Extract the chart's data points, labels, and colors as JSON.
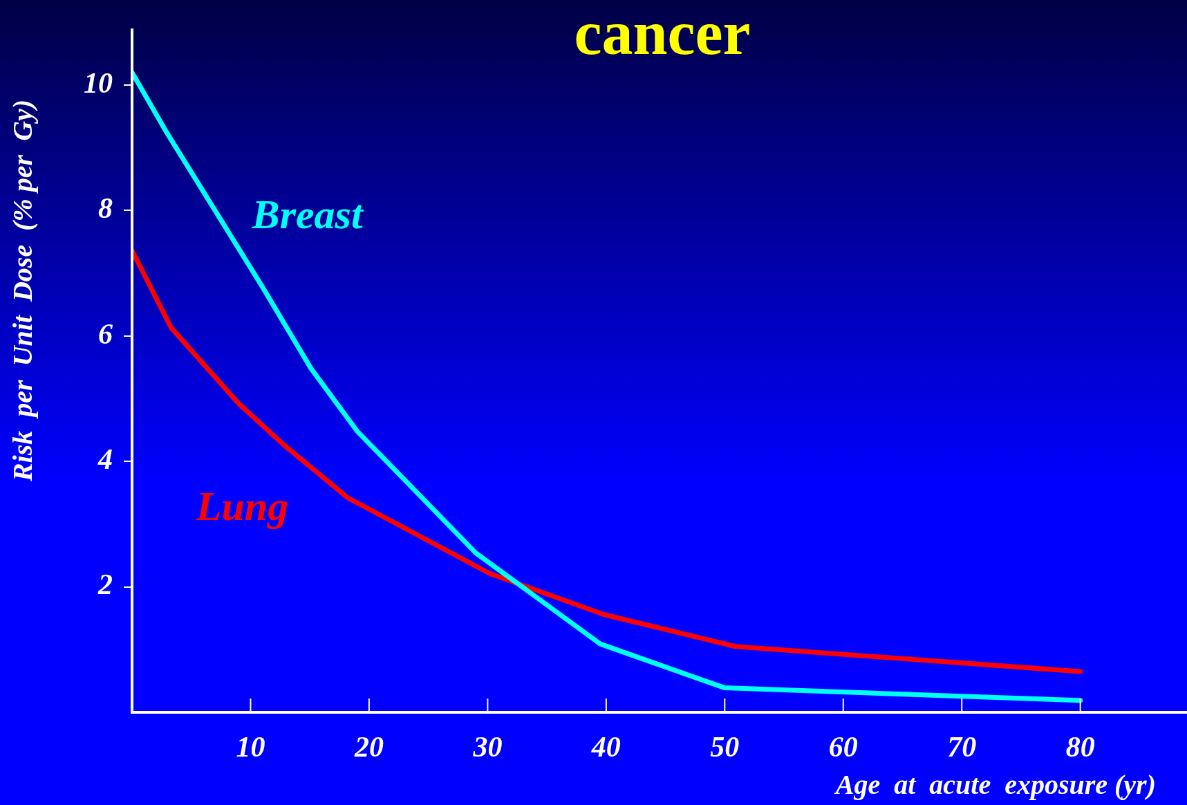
{
  "chart_data": {
    "type": "line",
    "title": "cancer",
    "xlabel": "Age  at  acute  exposure (yr)",
    "ylabel": "Risk  per  Unit  Dose  (% per  Gy)",
    "xlim": [
      0,
      89
    ],
    "ylim": [
      0,
      10.9
    ],
    "xticks": [
      10,
      20,
      30,
      40,
      50,
      60,
      70,
      80
    ],
    "yticks": [
      2,
      4,
      6,
      8,
      10
    ],
    "grid": false,
    "legend": false,
    "marker": "none",
    "line_style": "solid",
    "series": [
      {
        "name": "Breast",
        "color": "#00ffff",
        "x": [
          0,
          2.9,
          11,
          15.1,
          19,
          29,
          39.5,
          50,
          80
        ],
        "values": [
          10.2,
          9.25,
          6.78,
          5.48,
          4.48,
          2.54,
          1.09,
          0.39,
          0.19
        ]
      },
      {
        "name": "Lung",
        "color": "#ff0000",
        "x": [
          0,
          3.3,
          9,
          12.7,
          18.2,
          30.2,
          39.8,
          50.9,
          80
        ],
        "values": [
          7.36,
          6.13,
          4.92,
          4.28,
          3.42,
          2.21,
          1.56,
          1.05,
          0.65
        ]
      }
    ]
  }
}
